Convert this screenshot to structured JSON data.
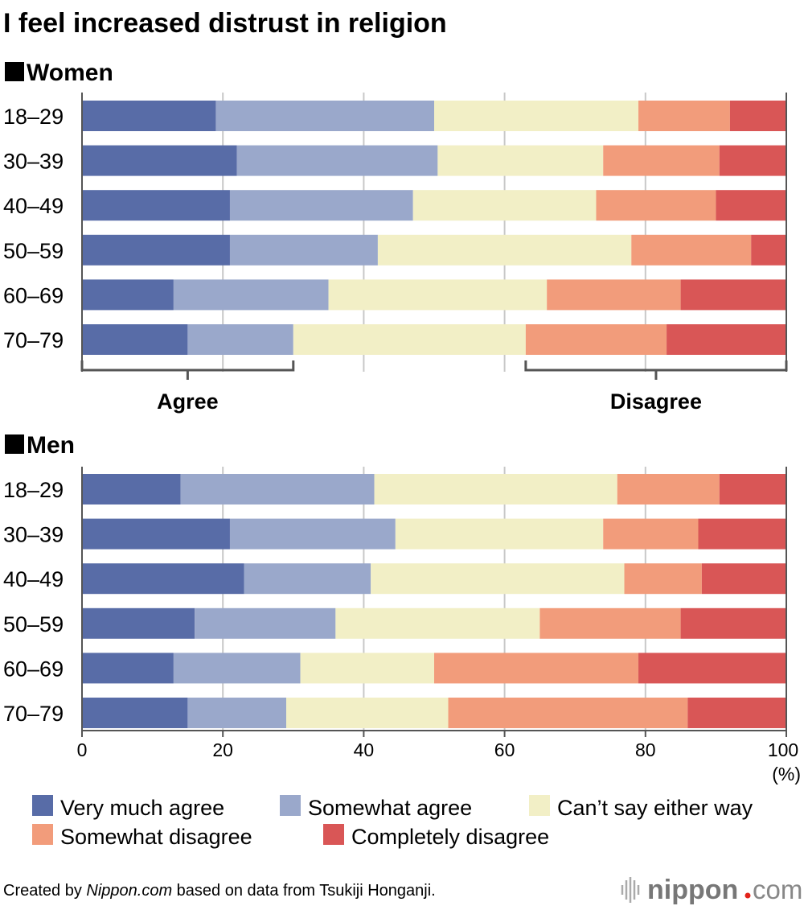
{
  "chart_data": {
    "type": "bar",
    "orientation": "horizontal-stacked-100",
    "title": "I feel increased distrust in religion",
    "xlabel": "(%)",
    "xlim": [
      0,
      100
    ],
    "xticks": [
      "0",
      "20",
      "40",
      "60",
      "80",
      "100"
    ],
    "grid": true,
    "legend_placement": "bottom",
    "categories": [
      "18–29",
      "30–39",
      "40–49",
      "50–59",
      "60–69",
      "70–79"
    ],
    "series_names": [
      "Very much agree",
      "Somewhat agree",
      "Can’t say either way",
      "Somewhat disagree",
      "Completely disagree"
    ],
    "colors": [
      "#586ca7",
      "#9aa8cb",
      "#f2efc6",
      "#f29c7b",
      "#d95656"
    ],
    "panels": [
      {
        "label": "Women",
        "values": [
          [
            19,
            31,
            29,
            13,
            8
          ],
          [
            22,
            28.5,
            23.5,
            16.5,
            9.5
          ],
          [
            21,
            26,
            26,
            17,
            10
          ],
          [
            21,
            21,
            36,
            17,
            5
          ],
          [
            13,
            22,
            31,
            19,
            15
          ],
          [
            15,
            15,
            33,
            20,
            17
          ]
        ]
      },
      {
        "label": "Men",
        "values": [
          [
            14,
            27.5,
            34.5,
            14.5,
            9.5
          ],
          [
            21,
            23.5,
            29.5,
            13.5,
            12.5
          ],
          [
            23,
            18,
            36,
            11,
            12
          ],
          [
            16,
            20,
            29,
            20,
            15
          ],
          [
            13,
            18,
            19,
            29,
            21
          ],
          [
            15,
            14,
            23,
            34,
            14
          ]
        ]
      }
    ],
    "annotations": {
      "agree": "Agree",
      "disagree": "Disagree"
    }
  },
  "footer": {
    "prefix": "Created by ",
    "source_site": "Nippon.com",
    "suffix": " based on data from Tsukiji Honganji.",
    "logo": "nippon.com"
  }
}
